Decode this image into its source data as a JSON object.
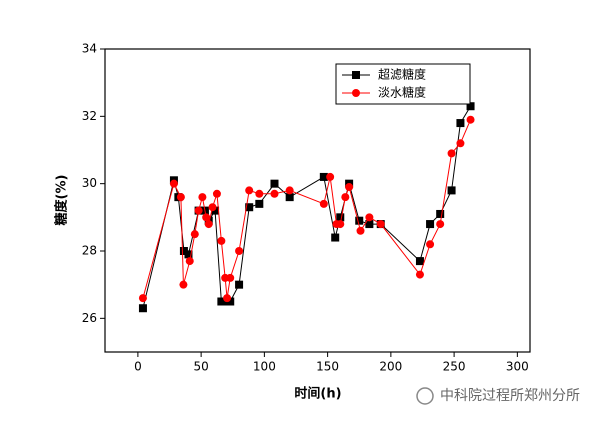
{
  "chart_data": {
    "type": "line",
    "xlabel": "时间(h)",
    "ylabel": "糖度(%)",
    "xlim": [
      -26,
      310
    ],
    "xticks": [
      0,
      50,
      100,
      150,
      200,
      250,
      300
    ],
    "ylim": [
      25,
      34
    ],
    "yticks": [
      26,
      28,
      30,
      32,
      34
    ],
    "legend": "upper right",
    "series": [
      {
        "name": "超滤糖度",
        "color": "#000000",
        "marker": "square",
        "x": [
          4,
          28.5,
          32,
          36.4,
          40,
          48,
          53,
          56,
          61,
          66,
          70,
          73,
          80,
          88,
          96,
          108,
          120,
          147,
          156,
          160,
          167,
          175,
          183,
          192,
          223,
          231,
          239,
          248,
          255,
          263
        ],
        "values": [
          26.3,
          30.1,
          29.6,
          28.0,
          27.9,
          29.2,
          29.2,
          28.9,
          29.2,
          26.5,
          26.5,
          26.5,
          27.0,
          29.3,
          29.4,
          30.0,
          29.6,
          30.2,
          28.4,
          29.0,
          30.0,
          28.9,
          28.8,
          28.8,
          27.7,
          28.8,
          29.1,
          29.8,
          31.8,
          32.3
        ]
      },
      {
        "name": "淡水糖度",
        "color": "#ff0000",
        "marker": "circle",
        "x": [
          4,
          28.5,
          34,
          36,
          41,
          45,
          48,
          51,
          54,
          56,
          59,
          62.5,
          66,
          69,
          70.5,
          73,
          80,
          88,
          96,
          108,
          120,
          147,
          152,
          157,
          160,
          164,
          167,
          176,
          183,
          192,
          223,
          231,
          239,
          248,
          255,
          263
        ],
        "values": [
          26.6,
          30.0,
          29.6,
          27.0,
          27.7,
          28.5,
          29.2,
          29.6,
          29.0,
          28.8,
          29.3,
          29.7,
          28.3,
          27.2,
          26.6,
          27.2,
          28.0,
          29.8,
          29.7,
          29.7,
          29.8,
          29.4,
          30.2,
          28.8,
          28.8,
          29.6,
          29.9,
          28.6,
          29.0,
          28.8,
          27.3,
          28.2,
          28.8,
          30.9,
          31.2,
          31.9
        ]
      }
    ]
  },
  "watermark": "中科院过程所郑州分所"
}
